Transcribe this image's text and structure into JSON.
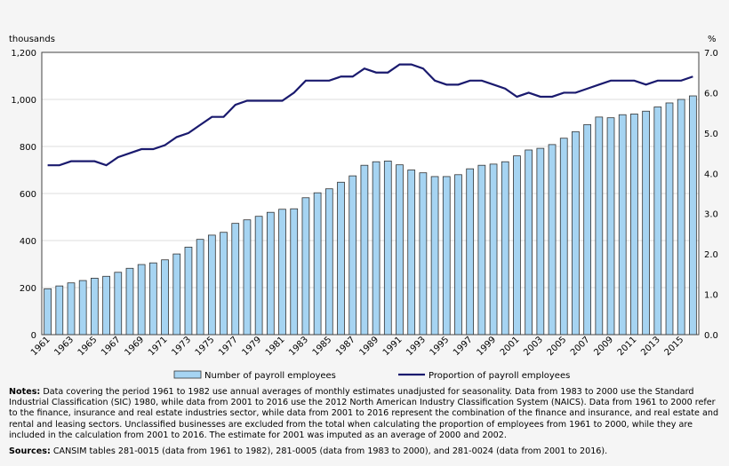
{
  "chart_data": {
    "type": "bar+line",
    "left_axis_label": "thousands",
    "right_axis_label": "%",
    "ylim_left": [
      0,
      1200
    ],
    "ylim_right": [
      0,
      7
    ],
    "left_ticks": [
      "0",
      "200",
      "400",
      "600",
      "800",
      "1,000",
      "1,200"
    ],
    "right_ticks": [
      "0.0",
      "1.0",
      "2.0",
      "3.0",
      "4.0",
      "5.0",
      "6.0",
      "7.0"
    ],
    "grid": true,
    "legend_placement": "bottom",
    "categories": [
      1961,
      1962,
      1963,
      1964,
      1965,
      1966,
      1967,
      1968,
      1969,
      1970,
      1971,
      1972,
      1973,
      1974,
      1975,
      1976,
      1977,
      1978,
      1979,
      1980,
      1981,
      1982,
      1983,
      1984,
      1985,
      1986,
      1987,
      1988,
      1989,
      1990,
      1991,
      1992,
      1993,
      1994,
      1995,
      1996,
      1997,
      1998,
      1999,
      2000,
      2001,
      2002,
      2003,
      2004,
      2005,
      2006,
      2007,
      2008,
      2009,
      2010,
      2011,
      2012,
      2013,
      2014,
      2015,
      2016
    ],
    "series": [
      {
        "name": "Number of payroll employees",
        "type": "bar",
        "axis": "left",
        "color": "#a6d4f2",
        "values": [
          195,
          207,
          220,
          230,
          240,
          248,
          265,
          282,
          298,
          305,
          318,
          343,
          372,
          405,
          423,
          435,
          473,
          488,
          503,
          520,
          533,
          535,
          582,
          603,
          620,
          648,
          675,
          720,
          735,
          738,
          722,
          700,
          688,
          672,
          672,
          680,
          705,
          720,
          725,
          735,
          760,
          785,
          792,
          808,
          835,
          863,
          893,
          925,
          922,
          935,
          938,
          950,
          968,
          985,
          1000,
          1015
        ]
      },
      {
        "name": "Proportion of payroll employees",
        "type": "line",
        "axis": "right",
        "color": "#1a1a6e",
        "values": [
          4.2,
          4.2,
          4.3,
          4.3,
          4.3,
          4.2,
          4.4,
          4.5,
          4.6,
          4.6,
          4.7,
          4.9,
          5.0,
          5.2,
          5.4,
          5.4,
          5.7,
          5.8,
          5.8,
          5.8,
          5.8,
          6.0,
          6.3,
          6.3,
          6.3,
          6.4,
          6.4,
          6.6,
          6.5,
          6.5,
          6.7,
          6.7,
          6.6,
          6.3,
          6.2,
          6.2,
          6.3,
          6.3,
          6.2,
          6.1,
          5.9,
          6.0,
          5.9,
          5.9,
          6.0,
          6.0,
          6.1,
          6.2,
          6.3,
          6.3,
          6.3,
          6.2,
          6.3,
          6.3,
          6.3,
          6.4
        ]
      }
    ]
  },
  "notes": {
    "label": "Notes:",
    "text": " Data covering the period 1961 to 1982 use annual averages of monthly estimates unadjusted for seasonality. Data from 1983 to 2000 use the Standard Industrial Classification (SIC) 1980, while data from 2001 to 2016 use the 2012 North American Industry Classification System (NAICS). Data from 1961 to 2000 refer to the finance, insurance and real estate industries sector, while data from 2001 to 2016 represent the combination of the finance and insurance, and real estate and rental and leasing sectors. Unclassified businesses are excluded from the total when calculating the proportion of employees from 1961 to 2000, while they are included in the calculation from 2001 to 2016. The estimate for 2001 was imputed as an average of 2000 and 2002."
  },
  "sources": {
    "label": "Sources:",
    "text": " CANSIM tables 281-0015 (data from 1961 to 1982), 281-0005 (data from 1983 to 2000), and 281-0024 (data from 2001 to 2016)."
  }
}
